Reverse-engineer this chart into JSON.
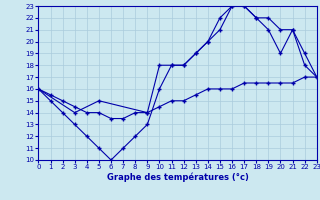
{
  "title": "Graphe des températures (°c)",
  "bg_color": "#cce8f0",
  "line_color": "#0000aa",
  "grid_color": "#aaccdd",
  "xlim": [
    0,
    23
  ],
  "ylim": [
    10,
    23
  ],
  "xticks": [
    0,
    1,
    2,
    3,
    4,
    5,
    6,
    7,
    8,
    9,
    10,
    11,
    12,
    13,
    14,
    15,
    16,
    17,
    18,
    19,
    20,
    21,
    22,
    23
  ],
  "yticks": [
    10,
    11,
    12,
    13,
    14,
    15,
    16,
    17,
    18,
    19,
    20,
    21,
    22,
    23
  ],
  "series1_x": [
    0,
    1,
    2,
    3,
    4,
    5,
    6,
    7,
    8,
    9,
    10,
    11,
    12,
    13,
    14,
    15,
    16,
    17,
    18,
    19,
    20,
    21,
    22,
    23
  ],
  "series1_y": [
    16,
    15.5,
    15,
    14.5,
    14,
    14,
    13.5,
    13.5,
    14,
    14,
    14.5,
    15,
    15,
    15.5,
    16,
    16,
    16,
    16.5,
    16.5,
    16.5,
    16.5,
    16.5,
    17,
    17
  ],
  "series2_x": [
    0,
    1,
    2,
    3,
    4,
    5,
    6,
    7,
    8,
    9,
    10,
    11,
    12,
    13,
    14,
    15,
    16,
    17,
    18,
    19,
    20,
    21,
    22,
    23
  ],
  "series2_y": [
    16,
    15,
    14,
    13,
    12,
    11,
    10,
    11,
    12,
    13,
    16,
    18,
    18,
    19,
    20,
    21,
    23,
    23,
    22,
    21,
    19,
    21,
    18,
    17
  ],
  "series3_x": [
    0,
    3,
    5,
    9,
    10,
    11,
    12,
    13,
    14,
    15,
    16,
    17,
    18,
    19,
    20,
    21,
    22,
    23
  ],
  "series3_y": [
    16,
    14,
    15,
    14,
    18,
    18,
    18,
    19,
    20,
    22,
    23,
    23,
    22,
    22,
    21,
    21,
    19,
    17
  ]
}
